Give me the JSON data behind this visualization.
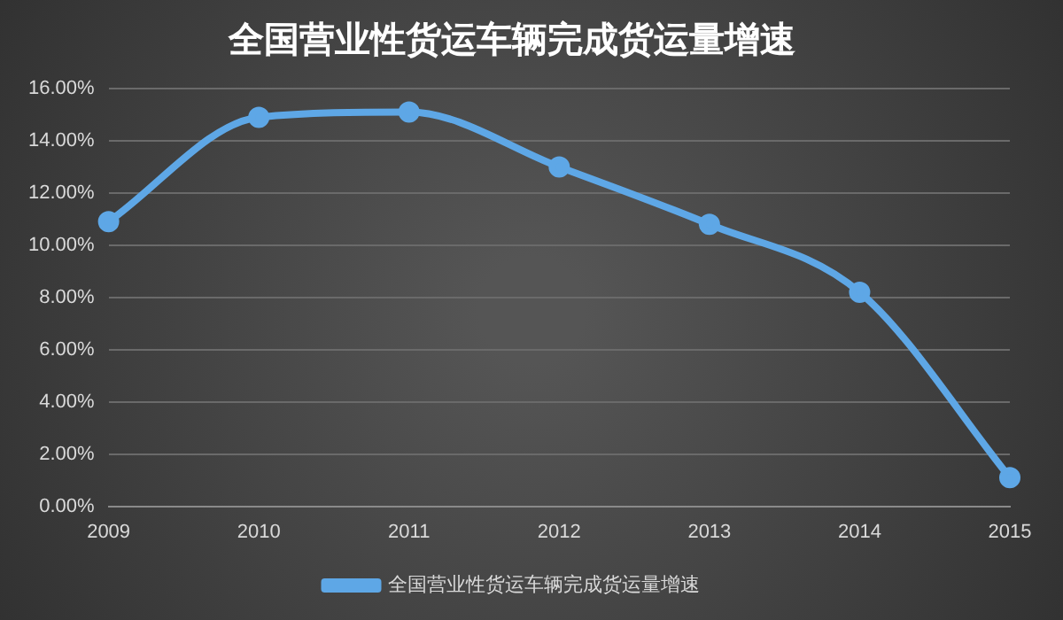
{
  "chart_data": {
    "type": "line",
    "title": "全国营业性货运车辆完成货运量增速",
    "categories": [
      "2009",
      "2010",
      "2011",
      "2012",
      "2013",
      "2014",
      "2015"
    ],
    "series": [
      {
        "name": "全国营业性货运车辆完成货运量增速",
        "color": "#5ea7e6",
        "values": [
          10.9,
          14.9,
          15.1,
          13.0,
          10.8,
          8.2,
          1.1
        ]
      }
    ],
    "ylim": [
      0,
      16
    ],
    "yticks": [
      {
        "value": 0,
        "label": "0.00%"
      },
      {
        "value": 2,
        "label": "2.00%"
      },
      {
        "value": 4,
        "label": "4.00%"
      },
      {
        "value": 6,
        "label": "6.00%"
      },
      {
        "value": 8,
        "label": "8.00%"
      },
      {
        "value": 10,
        "label": "10.00%"
      },
      {
        "value": 12,
        "label": "12.00%"
      },
      {
        "value": 14,
        "label": "14.00%"
      },
      {
        "value": 16,
        "label": "16.00%"
      }
    ],
    "grid": "y",
    "legend": "bottom",
    "marker": "circle",
    "line_style": "solid"
  }
}
